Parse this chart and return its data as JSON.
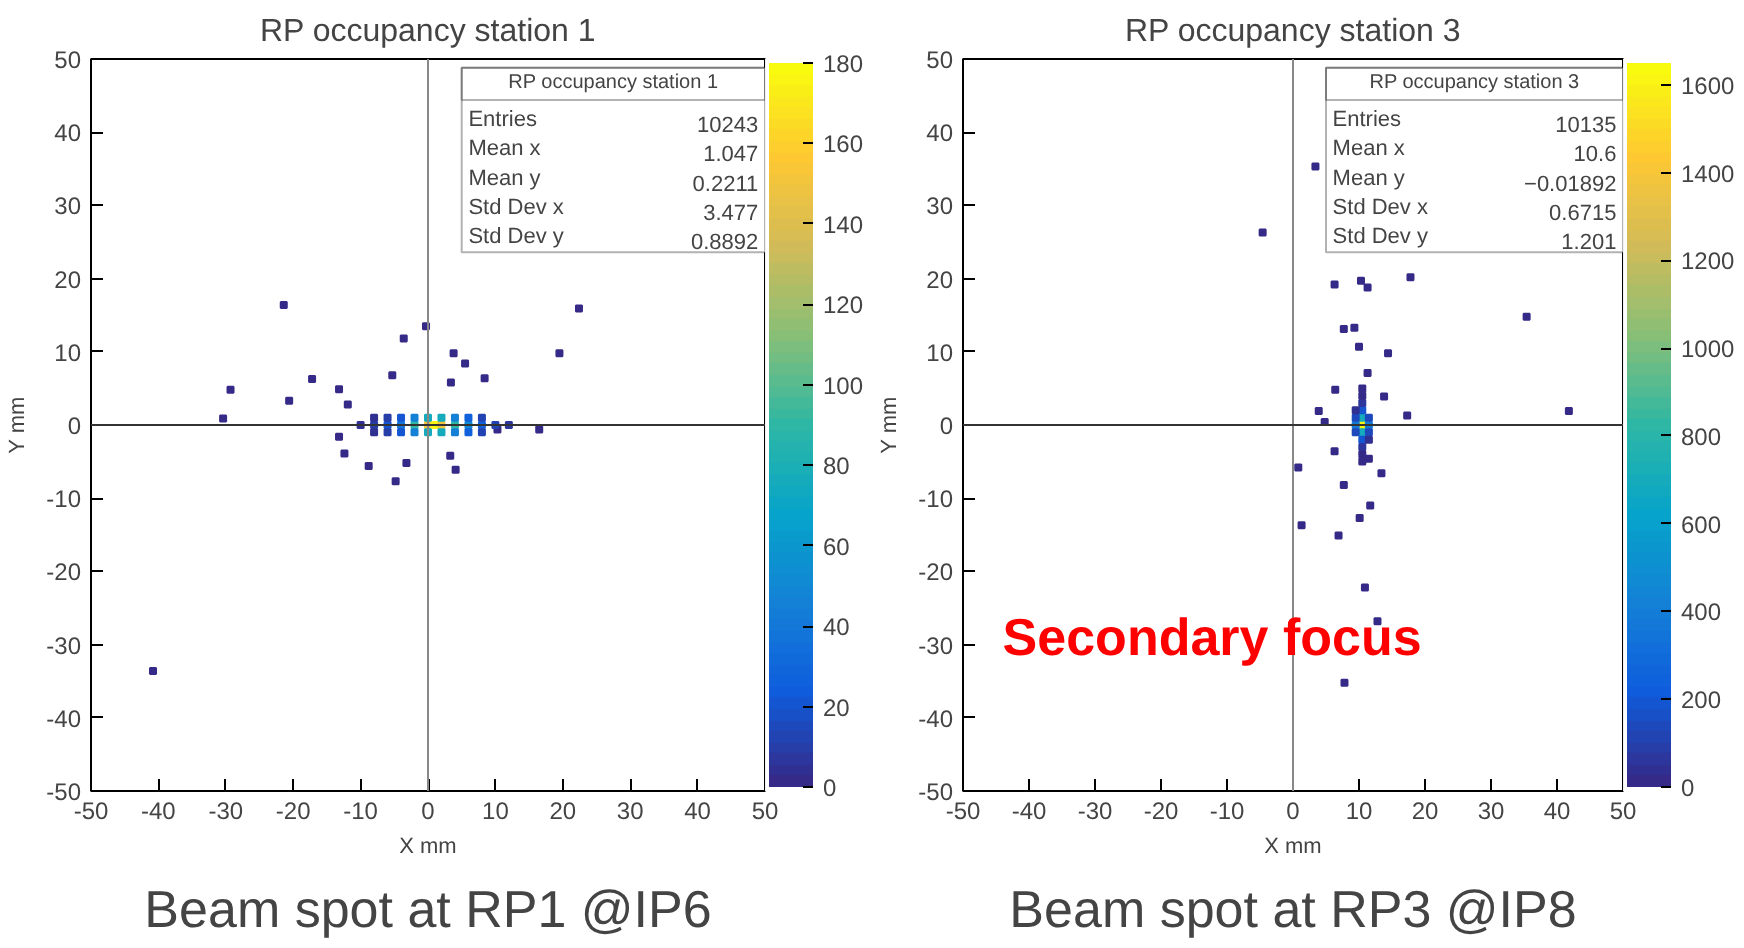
{
  "chart_data": [
    {
      "type": "scatter",
      "title": "RP occupancy station 1",
      "xlabel": "X mm",
      "ylabel": "Y mm",
      "marker": "square",
      "grid": false,
      "xlim": [
        -50,
        50
      ],
      "ylim": [
        -50,
        50
      ],
      "xticks": [
        -50,
        -40,
        -30,
        -20,
        -10,
        0,
        10,
        20,
        30,
        40,
        50
      ],
      "yticks": [
        -50,
        -40,
        -30,
        -20,
        -10,
        0,
        10,
        20,
        30,
        40,
        50
      ],
      "clim": [
        0,
        180
      ],
      "cticks": [
        0,
        20,
        40,
        60,
        80,
        100,
        120,
        140,
        160,
        180
      ],
      "ref_lines": [
        {
          "axis": "x",
          "value": 0,
          "color": "#888888"
        },
        {
          "axis": "y",
          "value": 0,
          "color": "#333333"
        }
      ],
      "x": [
        -21.4,
        22.4,
        -0.3,
        -3.6,
        3.8,
        19.5,
        5.5,
        -29.3,
        -17.2,
        -20.6,
        -30.4,
        -5.3,
        8.4,
        3.4,
        10.3,
        16.5,
        -40.8,
        -4.8,
        -8.8,
        4.1,
        -13.2,
        -12.4,
        -3.2,
        3.3,
        -13.2,
        -11.9,
        -10,
        -8,
        -6,
        -4,
        -2,
        0,
        1,
        2,
        4,
        6,
        8,
        10,
        12,
        -8,
        -6,
        -4,
        -2,
        0,
        2,
        4,
        6,
        8,
        -8,
        -6,
        -4,
        -2,
        0,
        2,
        4,
        6,
        8
      ],
      "values": [
        16.4,
        15.9,
        13.5,
        11.8,
        9.8,
        9.8,
        8.4,
        4.8,
        6.3,
        3.3,
        0.9,
        6.8,
        6.4,
        5.8,
        -0.6,
        -0.6,
        -33.6,
        -7.7,
        -5.6,
        -6.1,
        -1.6,
        -3.9,
        -5.2,
        -4.2,
        4.9,
        2.8,
        0,
        0,
        0,
        0,
        0,
        0,
        0,
        0,
        0,
        0,
        0,
        0,
        0,
        1,
        1,
        1,
        1,
        1,
        1,
        1,
        1,
        1,
        -1,
        -1,
        -1,
        -1,
        -1,
        -1,
        -1,
        -1,
        -1
      ],
      "cvalues": [
        1,
        1,
        1,
        1,
        1,
        1,
        1,
        1,
        1,
        1,
        1,
        1,
        1,
        1,
        1,
        1,
        1,
        1,
        1,
        1,
        1,
        1,
        1,
        1,
        1,
        1,
        5,
        10,
        20,
        40,
        90,
        150,
        175,
        150,
        90,
        50,
        25,
        12,
        6,
        5,
        10,
        20,
        45,
        75,
        75,
        45,
        25,
        12,
        5,
        10,
        20,
        45,
        75,
        75,
        45,
        25,
        12
      ],
      "annotations": [
        "RP occupancy station 1",
        "Entries 10243",
        "Mean x 1.047",
        "Mean y 0.2211",
        "Std Dev x 3.477",
        "Std Dev y 0.8892",
        "Beam spot at RP1 @IP6"
      ]
    },
    {
      "type": "scatter",
      "title": "RP occupancy station 3",
      "xlabel": "X mm",
      "ylabel": "Y mm",
      "marker": "square",
      "grid": false,
      "xlim": [
        -50,
        50
      ],
      "ylim": [
        -50,
        50
      ],
      "xticks": [
        -50,
        -40,
        -30,
        -20,
        -10,
        0,
        10,
        20,
        30,
        40,
        50
      ],
      "yticks": [
        -50,
        -40,
        -30,
        -20,
        -10,
        0,
        10,
        20,
        30,
        40,
        50
      ],
      "clim": [
        0,
        1650
      ],
      "cticks": [
        0,
        200,
        400,
        600,
        800,
        1000,
        1200,
        1400,
        1600
      ],
      "ref_lines": [
        {
          "axis": "x",
          "value": 0,
          "color": "#888888"
        },
        {
          "axis": "y",
          "value": 0,
          "color": "#333333"
        }
      ],
      "x": [
        -4.6,
        3.4,
        17.8,
        35.4,
        41.8,
        6.3,
        10.3,
        11.3,
        7.7,
        9.3,
        10,
        14.4,
        3.9,
        4.8,
        17.3,
        0.8,
        1.3,
        6.9,
        7.7,
        10.9,
        7.8,
        12.8,
        13.4,
        10.1,
        6.4,
        11.3,
        6.3,
        13.8,
        11.7,
        11.5,
        10.5,
        10.5,
        10.5,
        9.5,
        11.5,
        10.5,
        10.5,
        9.5,
        11.5,
        9.5,
        11.5,
        10.5,
        10.5,
        10.5,
        10.5,
        9.5,
        11.5,
        10.5,
        10.5
      ],
      "values": [
        26.3,
        35.3,
        20.2,
        14.8,
        1.9,
        19.2,
        19.7,
        18.8,
        13.1,
        13.3,
        10.7,
        9.8,
        1.9,
        0.4,
        1.3,
        -5.8,
        -13.7,
        -15.1,
        -8.2,
        -22.2,
        -35.2,
        -26.8,
        -6.6,
        -12.7,
        4.8,
        7.1,
        -3.6,
        3.9,
        -11,
        -4.6,
        0,
        1,
        -1,
        0,
        0,
        2,
        -2,
        1,
        1,
        -1,
        -1,
        3,
        -3,
        4,
        -4,
        2,
        -2,
        5,
        -5
      ],
      "cvalues": [
        1,
        1,
        1,
        1,
        1,
        1,
        1,
        1,
        1,
        1,
        1,
        1,
        1,
        1,
        1,
        1,
        1,
        1,
        1,
        1,
        1,
        1,
        1,
        1,
        1,
        1,
        1,
        1,
        1,
        1,
        1600,
        700,
        700,
        400,
        400,
        200,
        200,
        150,
        150,
        150,
        150,
        60,
        60,
        20,
        20,
        40,
        40,
        8,
        8
      ],
      "annotations": [
        "RP occupancy station 3",
        "Entries 10135",
        "Mean x 10.6",
        "Mean y −0.01892",
        "Std Dev x 0.6715",
        "Std Dev y 1.201",
        "Beam spot at RP3 @IP8",
        "Secondary focus"
      ]
    }
  ]
}
